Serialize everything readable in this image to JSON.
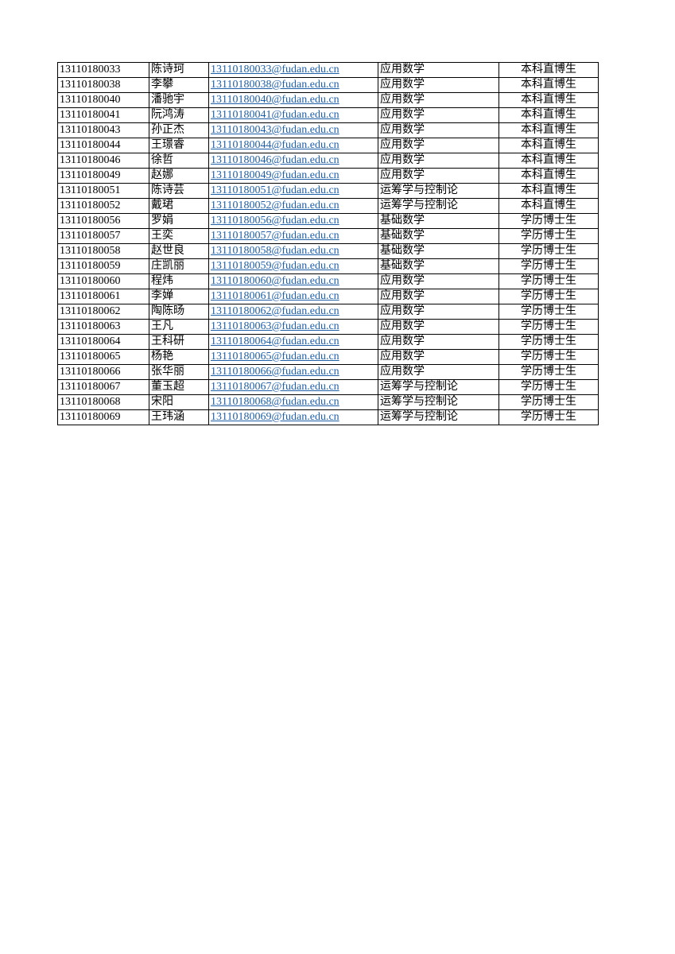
{
  "link_color": "#2060a8",
  "rows": [
    {
      "id": "13110180033",
      "name": "陈诗珂",
      "email": "13110180033@fudan.edu.cn",
      "major": "应用数学",
      "type": "本科直博生"
    },
    {
      "id": "13110180038",
      "name": "李攀",
      "email": "13110180038@fudan.edu.cn",
      "major": "应用数学",
      "type": "本科直博生"
    },
    {
      "id": "13110180040",
      "name": "潘驰宇",
      "email": "13110180040@fudan.edu.cn",
      "major": "应用数学",
      "type": "本科直博生"
    },
    {
      "id": "13110180041",
      "name": "阮鸿涛",
      "email": "13110180041@fudan.edu.cn",
      "major": "应用数学",
      "type": "本科直博生"
    },
    {
      "id": "13110180043",
      "name": "孙正杰",
      "email": "13110180043@fudan.edu.cn",
      "major": "应用数学",
      "type": "本科直博生"
    },
    {
      "id": "13110180044",
      "name": "王璟睿",
      "email": "13110180044@fudan.edu.cn",
      "major": "应用数学",
      "type": "本科直博生"
    },
    {
      "id": "13110180046",
      "name": "徐哲",
      "email": "13110180046@fudan.edu.cn",
      "major": "应用数学",
      "type": "本科直博生"
    },
    {
      "id": "13110180049",
      "name": "赵娜",
      "email": "13110180049@fudan.edu.cn",
      "major": "应用数学",
      "type": "本科直博生"
    },
    {
      "id": "13110180051",
      "name": "陈诗芸",
      "email": "13110180051@fudan.edu.cn",
      "major": "运筹学与控制论",
      "type": "本科直博生"
    },
    {
      "id": "13110180052",
      "name": "戴珺",
      "email": "13110180052@fudan.edu.cn",
      "major": "运筹学与控制论",
      "type": "本科直博生"
    },
    {
      "id": "13110180056",
      "name": "罗娟",
      "email": "13110180056@fudan.edu.cn",
      "major": "基础数学",
      "type": "学历博士生"
    },
    {
      "id": "13110180057",
      "name": "王奕",
      "email": "13110180057@fudan.edu.cn",
      "major": "基础数学",
      "type": "学历博士生"
    },
    {
      "id": "13110180058",
      "name": "赵世良",
      "email": "13110180058@fudan.edu.cn",
      "major": "基础数学",
      "type": "学历博士生"
    },
    {
      "id": "13110180059",
      "name": "庄凯丽",
      "email": "13110180059@fudan.edu.cn",
      "major": "基础数学",
      "type": "学历博士生"
    },
    {
      "id": "13110180060",
      "name": "程炜",
      "email": "13110180060@fudan.edu.cn",
      "major": "应用数学",
      "type": "学历博士生"
    },
    {
      "id": "13110180061",
      "name": "李婵",
      "email": "13110180061@fudan.edu.cn",
      "major": "应用数学",
      "type": "学历博士生"
    },
    {
      "id": "13110180062",
      "name": "陶陈旸",
      "email": "13110180062@fudan.edu.cn",
      "major": "应用数学",
      "type": "学历博士生"
    },
    {
      "id": "13110180063",
      "name": "王凡",
      "email": "13110180063@fudan.edu.cn",
      "major": "应用数学",
      "type": "学历博士生"
    },
    {
      "id": "13110180064",
      "name": "王科研",
      "email": "13110180064@fudan.edu.cn",
      "major": "应用数学",
      "type": "学历博士生"
    },
    {
      "id": "13110180065",
      "name": "杨艳",
      "email": "13110180065@fudan.edu.cn",
      "major": "应用数学",
      "type": "学历博士生"
    },
    {
      "id": "13110180066",
      "name": "张华丽",
      "email": "13110180066@fudan.edu.cn",
      "major": "应用数学",
      "type": "学历博士生"
    },
    {
      "id": "13110180067",
      "name": "董玉超",
      "email": "13110180067@fudan.edu.cn",
      "major": "运筹学与控制论",
      "type": "学历博士生"
    },
    {
      "id": "13110180068",
      "name": "宋阳",
      "email": "13110180068@fudan.edu.cn",
      "major": "运筹学与控制论",
      "type": "学历博士生"
    },
    {
      "id": "13110180069",
      "name": "王玮涵",
      "email": "13110180069@fudan.edu.cn",
      "major": "运筹学与控制论",
      "type": "学历博士生"
    }
  ]
}
